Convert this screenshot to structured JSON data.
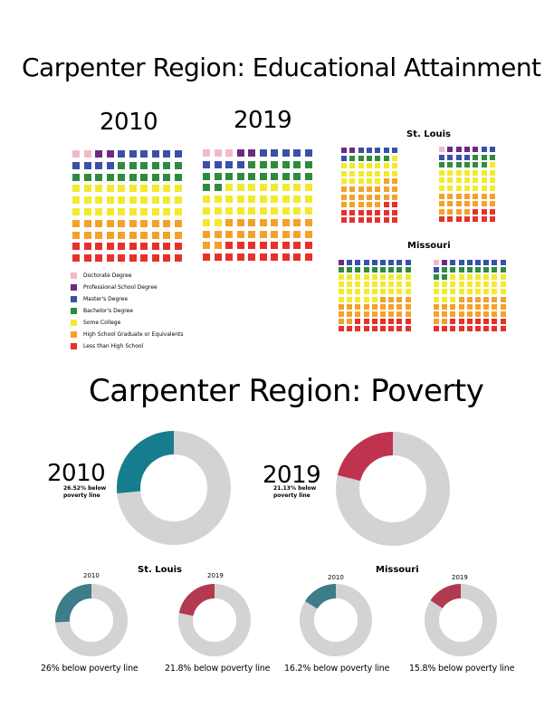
{
  "titles": {
    "education": "Carpenter Region: Educational Attainment",
    "poverty": "Carpenter Region: Poverty"
  },
  "colors": {
    "doctorate": "#f4b8c8",
    "professional": "#6b2b82",
    "masters": "#3a4fa8",
    "bachelors": "#2e8b3e",
    "some_college": "#f2ea2c",
    "high_school": "#f4a12a",
    "less_than_hs": "#e8302a",
    "donut_gray": "#d3d3d3",
    "teal_large": "#167d8e",
    "crimson_large": "#c0334f",
    "teal_small": "#3d7c89",
    "crimson_small": "#b23a50"
  },
  "legend": [
    {
      "key": "doctorate",
      "label": "Doctorate Degree",
      "color": "#f4b8c8"
    },
    {
      "key": "professional",
      "label": "Professional School Degree",
      "color": "#6b2b82"
    },
    {
      "key": "masters",
      "label": "Master's Degree",
      "color": "#3a4fa8"
    },
    {
      "key": "bachelors",
      "label": "Bachelor's Degree",
      "color": "#2e8b3e"
    },
    {
      "key": "some_college",
      "label": "Some College",
      "color": "#f2ea2c"
    },
    {
      "key": "high_school",
      "label": "High School Graduate or Equivalents",
      "color": "#f4a12a"
    },
    {
      "key": "less_than_hs",
      "label": "Less than High School",
      "color": "#e8302a"
    }
  ],
  "chart_data": [
    {
      "type": "waffle",
      "region": "Carpenter Region",
      "year": "2010",
      "unit_squares": 100,
      "counts": {
        "doctorate": 2,
        "professional": 2,
        "masters": 10,
        "bachelors": 16,
        "some_college": 30,
        "high_school": 20,
        "less_than_hs": 20
      }
    },
    {
      "type": "waffle",
      "region": "Carpenter Region",
      "year": "2019",
      "unit_squares": 100,
      "counts": {
        "doctorate": 3,
        "professional": 2,
        "masters": 9,
        "bachelors": 18,
        "some_college": 30,
        "high_school": 20,
        "less_than_hs": 18
      }
    },
    {
      "type": "waffle",
      "region": "St. Louis",
      "year": "2010",
      "unit_squares": 70,
      "counts": {
        "doctorate": 0,
        "professional": 2,
        "masters": 6,
        "bachelors": 5,
        "some_college": 20,
        "high_school": 21,
        "less_than_hs": 16
      }
    },
    {
      "type": "waffle",
      "region": "St. Louis",
      "year": "2019",
      "unit_squares": 70,
      "counts": {
        "doctorate": 1,
        "professional": 4,
        "masters": 6,
        "bachelors": 9,
        "some_college": 22,
        "high_school": 18,
        "less_than_hs": 10
      }
    },
    {
      "type": "waffle",
      "region": "Missouri",
      "year": "2010",
      "unit_squares": 90,
      "counts": {
        "doctorate": 0,
        "professional": 1,
        "masters": 8,
        "bachelors": 9,
        "some_college": 32,
        "high_school": 24,
        "less_than_hs": 16
      }
    },
    {
      "type": "waffle",
      "region": "Missouri",
      "year": "2019",
      "unit_squares": 90,
      "counts": {
        "doctorate": 1,
        "professional": 1,
        "masters": 8,
        "bachelors": 10,
        "some_college": 28,
        "high_school": 26,
        "less_than_hs": 16
      }
    },
    {
      "type": "pie",
      "region": "Carpenter Region",
      "slices": [
        {
          "year": "2010",
          "value": 26.52,
          "label": "26.52% below poverty line",
          "color": "#167d8e"
        },
        {
          "year": "2019",
          "value": 21.13,
          "label": "21.13% below poverty line",
          "color": "#c0334f"
        }
      ]
    },
    {
      "type": "pie",
      "region": "St. Louis",
      "slices": [
        {
          "year": "2010",
          "value": 26,
          "label": "26% below poverty line",
          "color": "#3d7c89"
        },
        {
          "year": "2019",
          "value": 21.8,
          "label": "21.8% below poverty line",
          "color": "#b23a50"
        }
      ]
    },
    {
      "type": "pie",
      "region": "Missouri",
      "slices": [
        {
          "year": "2010",
          "value": 16.2,
          "label": "16.2% below poverty line",
          "color": "#3d7c89"
        },
        {
          "year": "2019",
          "value": 15.8,
          "label": "15.8% below poverty line",
          "color": "#b23a50"
        }
      ]
    }
  ],
  "labels": {
    "edu_year_2010": "2010",
    "edu_year_2019": "2019",
    "stl_title": "St. Louis",
    "mo_title": "Missouri",
    "pov_year_2010": "2010",
    "pov_year_2019": "2019",
    "pov_note_2010_a": "26.52% below",
    "pov_note_2010_b": "poverty line",
    "pov_note_2019_a": "21.13% below",
    "pov_note_2019_b": "poverty line",
    "stl_pov_title": "St. Louis",
    "mo_pov_title": "Missouri",
    "small_2010_a": "2010",
    "small_2019_a": "2019",
    "small_2010_b": "2010",
    "small_2019_b": "2019",
    "cap_stl_2010": "26% below poverty line",
    "cap_stl_2019": "21.8% below poverty line",
    "cap_mo_2010": "16.2% below poverty line",
    "cap_mo_2019": "15.8% below poverty line"
  }
}
